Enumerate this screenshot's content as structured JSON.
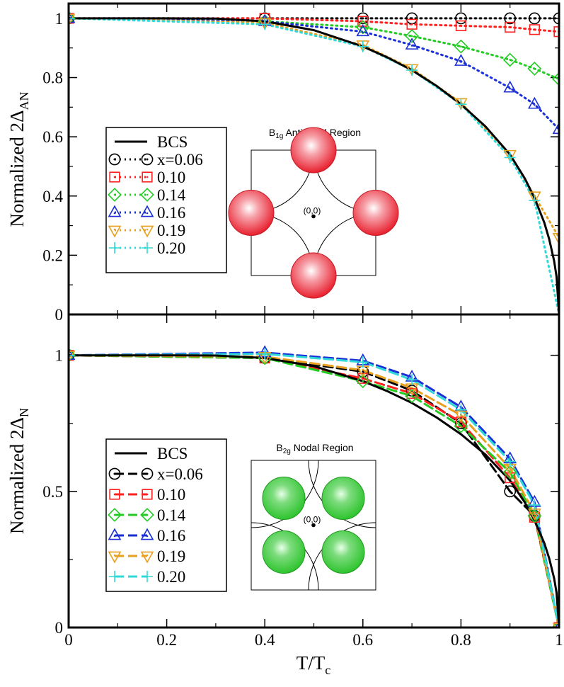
{
  "chart_data": [
    {
      "type": "line",
      "name": "top",
      "ylabel_main": "Normalized  2Δ",
      "ylabel_sub": "AN",
      "xlim": [
        0,
        1
      ],
      "ylim": [
        0,
        1.05
      ],
      "yticks": [
        "0",
        "0.2",
        "0.4",
        "0.6",
        "0.8",
        "1"
      ],
      "ytick_values": [
        0,
        0.2,
        0.4,
        0.6,
        0.8,
        1.0
      ],
      "linestyle": "dotted",
      "bcs": {
        "name": "BCS",
        "t": [
          0,
          0.1,
          0.2,
          0.3,
          0.4,
          0.5,
          0.6,
          0.65,
          0.7,
          0.75,
          0.8,
          0.85,
          0.9,
          0.93,
          0.95,
          0.97,
          0.98,
          0.99,
          0.995,
          1.0
        ],
        "y": [
          1.0,
          1.0,
          1.0,
          0.999,
          0.99,
          0.96,
          0.905,
          0.868,
          0.825,
          0.772,
          0.71,
          0.635,
          0.54,
          0.46,
          0.393,
          0.31,
          0.254,
          0.18,
          0.127,
          0.0
        ]
      },
      "series": [
        {
          "name": "x=0.06",
          "color": "#000000",
          "marker": "circle",
          "x": [
            0,
            0.4,
            0.6,
            0.7,
            0.8,
            0.9,
            0.95,
            1.0
          ],
          "y": [
            1.0,
            1.0,
            1.0,
            1.0,
            1.0,
            1.0,
            1.0,
            1.0
          ]
        },
        {
          "name": "0.10",
          "color": "#ff2020",
          "marker": "square",
          "x": [
            0,
            0.4,
            0.6,
            0.7,
            0.8,
            0.9,
            0.95,
            1.0
          ],
          "y": [
            1.0,
            1.0,
            0.99,
            0.98,
            0.975,
            0.97,
            0.962,
            0.955
          ]
        },
        {
          "name": "0.14",
          "color": "#22cc22",
          "marker": "diamond",
          "x": [
            0,
            0.4,
            0.6,
            0.7,
            0.8,
            0.9,
            0.95,
            1.0
          ],
          "y": [
            1.0,
            0.99,
            0.97,
            0.94,
            0.905,
            0.86,
            0.83,
            0.795
          ]
        },
        {
          "name": "0.16",
          "color": "#1a2fd6",
          "marker": "triangle-up",
          "x": [
            0,
            0.4,
            0.6,
            0.7,
            0.8,
            0.9,
            0.95,
            1.0
          ],
          "y": [
            1.0,
            0.99,
            0.955,
            0.91,
            0.855,
            0.765,
            0.71,
            0.625
          ]
        },
        {
          "name": "0.19",
          "color": "#e8a020",
          "marker": "triangle-down",
          "x": [
            0,
            0.4,
            0.6,
            0.7,
            0.8,
            0.9,
            0.95,
            1.0
          ],
          "y": [
            1.0,
            0.985,
            0.91,
            0.83,
            0.715,
            0.54,
            0.4,
            0.26
          ]
        },
        {
          "name": "0.20",
          "color": "#30d8d8",
          "marker": "plus",
          "x": [
            0,
            0.4,
            0.6,
            0.7,
            0.8,
            0.9,
            0.95,
            1.0
          ],
          "y": [
            1.0,
            0.98,
            0.905,
            0.825,
            0.71,
            0.53,
            0.385,
            0.0
          ]
        }
      ],
      "inset": {
        "title": "B",
        "title_sub": "1g",
        "title_rest": " Antinodal Region",
        "origin_label": "(0,0)",
        "spot_color": "#e8202e",
        "spot_layout": "antinodal"
      }
    },
    {
      "type": "line",
      "name": "bottom",
      "ylabel_main": "Normalized  2Δ",
      "ylabel_sub": "N",
      "xlabel_main": "T/T",
      "xlabel_sub": "c",
      "xlim": [
        0,
        1
      ],
      "ylim": [
        0,
        1.15
      ],
      "xticks": [
        "0",
        "0.2",
        "0.4",
        "0.6",
        "0.8",
        "1"
      ],
      "xtick_values": [
        0,
        0.2,
        0.4,
        0.6,
        0.8,
        1.0
      ],
      "yticks": [
        "0",
        "0.5",
        "1"
      ],
      "ytick_values": [
        0,
        0.5,
        1.0
      ],
      "linestyle": "dashed",
      "bcs": {
        "name": "BCS",
        "t": [
          0,
          0.1,
          0.2,
          0.3,
          0.4,
          0.5,
          0.6,
          0.65,
          0.7,
          0.75,
          0.8,
          0.85,
          0.9,
          0.93,
          0.95,
          0.97,
          0.98,
          0.99,
          0.995,
          1.0
        ],
        "y": [
          1.0,
          1.0,
          1.0,
          0.999,
          0.99,
          0.96,
          0.905,
          0.868,
          0.825,
          0.772,
          0.71,
          0.635,
          0.54,
          0.46,
          0.393,
          0.31,
          0.254,
          0.18,
          0.127,
          0.0
        ]
      },
      "series": [
        {
          "name": "x=0.06",
          "color": "#000000",
          "marker": "circle",
          "x": [
            0,
            0.4,
            0.6,
            0.7,
            0.8,
            0.9,
            0.95,
            1.0
          ],
          "y": [
            1.0,
            0.99,
            0.94,
            0.87,
            0.75,
            0.5,
            0.41,
            0.0
          ]
        },
        {
          "name": "0.10",
          "color": "#ff2020",
          "marker": "square",
          "x": [
            0,
            0.4,
            0.6,
            0.7,
            0.8,
            0.9,
            0.95,
            1.0
          ],
          "y": [
            1.0,
            0.99,
            0.915,
            0.86,
            0.755,
            0.55,
            0.405,
            0.0
          ]
        },
        {
          "name": "0.14",
          "color": "#22cc22",
          "marker": "diamond",
          "x": [
            0,
            0.4,
            0.6,
            0.7,
            0.8,
            0.9,
            0.95,
            1.0
          ],
          "y": [
            1.0,
            0.99,
            0.905,
            0.85,
            0.74,
            0.57,
            0.41,
            0.0
          ]
        },
        {
          "name": "0.16",
          "color": "#1a2fd6",
          "marker": "triangle-up",
          "x": [
            0,
            0.4,
            0.6,
            0.7,
            0.8,
            0.9,
            0.95,
            1.0
          ],
          "y": [
            1.0,
            1.01,
            0.98,
            0.92,
            0.81,
            0.62,
            0.46,
            0.0
          ]
        },
        {
          "name": "0.19",
          "color": "#e8a020",
          "marker": "triangle-down",
          "x": [
            0,
            0.4,
            0.6,
            0.7,
            0.8,
            0.9,
            0.95,
            1.0
          ],
          "y": [
            1.0,
            0.995,
            0.945,
            0.88,
            0.78,
            0.585,
            0.42,
            0.0
          ]
        },
        {
          "name": "0.20",
          "color": "#30d8d8",
          "marker": "plus",
          "x": [
            0,
            0.4,
            0.6,
            0.7,
            0.8,
            0.9,
            0.95,
            1.0
          ],
          "y": [
            1.0,
            1.005,
            0.975,
            0.91,
            0.8,
            0.61,
            0.45,
            0.0
          ]
        }
      ],
      "inset": {
        "title": "B",
        "title_sub": "2g",
        "title_rest": " Nodal Region",
        "origin_label": "(0,0)",
        "spot_color": "#2ec42e",
        "spot_layout": "nodal"
      }
    }
  ]
}
